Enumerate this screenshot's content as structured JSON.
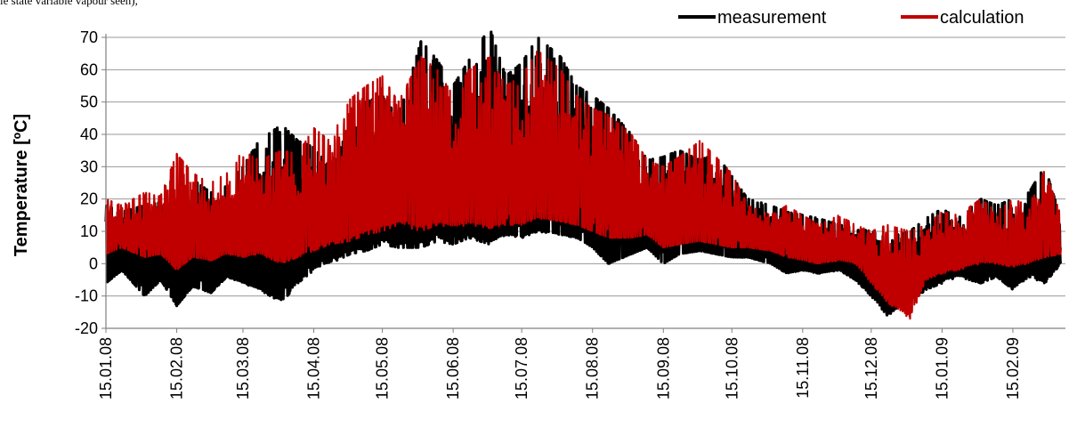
{
  "top_text": "le state variable vapour seen),",
  "chart_data": {
    "type": "line",
    "ylabel": "Temperature [ºC]",
    "xlabel": "",
    "ylim": [
      -20,
      70
    ],
    "yticks": [
      -20,
      -10,
      0,
      10,
      20,
      30,
      40,
      50,
      60,
      70
    ],
    "grid": "horizontal",
    "legend_position": "top-right",
    "x_domain": [
      "2008-01-15",
      "2009-03-10"
    ],
    "x_ticks": [
      {
        "date": "2008-01-15",
        "label": "15.01.08"
      },
      {
        "date": "2008-02-15",
        "label": "15.02.08"
      },
      {
        "date": "2008-03-15",
        "label": "15.03.08"
      },
      {
        "date": "2008-04-15",
        "label": "15.04.08"
      },
      {
        "date": "2008-05-15",
        "label": "15.05.08"
      },
      {
        "date": "2008-06-15",
        "label": "15.06.08"
      },
      {
        "date": "2008-07-15",
        "label": "15.07.08"
      },
      {
        "date": "2008-08-15",
        "label": "15.08.08"
      },
      {
        "date": "2008-09-15",
        "label": "15.09.08"
      },
      {
        "date": "2008-10-15",
        "label": "15.10.08"
      },
      {
        "date": "2008-11-15",
        "label": "15.11.08"
      },
      {
        "date": "2008-12-15",
        "label": "15.12.08"
      },
      {
        "date": "2009-01-15",
        "label": "15.01.09"
      },
      {
        "date": "2009-02-15",
        "label": "15.02.09"
      }
    ],
    "series": [
      {
        "name": "measurement",
        "color": "#000000",
        "envelope": [
          {
            "x": "2008-01-15",
            "min": -6,
            "max": 18
          },
          {
            "x": "2008-01-22",
            "min": -2,
            "max": 16
          },
          {
            "x": "2008-02-01",
            "min": -10,
            "max": 18
          },
          {
            "x": "2008-02-08",
            "min": -5,
            "max": 19
          },
          {
            "x": "2008-02-15",
            "min": -13,
            "max": 17
          },
          {
            "x": "2008-02-22",
            "min": -7,
            "max": 26
          },
          {
            "x": "2008-03-01",
            "min": -9,
            "max": 22
          },
          {
            "x": "2008-03-08",
            "min": -4,
            "max": 24
          },
          {
            "x": "2008-03-15",
            "min": -6,
            "max": 30
          },
          {
            "x": "2008-03-22",
            "min": -8,
            "max": 38
          },
          {
            "x": "2008-04-01",
            "min": -12,
            "max": 43
          },
          {
            "x": "2008-04-08",
            "min": -6,
            "max": 38
          },
          {
            "x": "2008-04-15",
            "min": -2,
            "max": 36
          },
          {
            "x": "2008-04-22",
            "min": 0,
            "max": 30
          },
          {
            "x": "2008-05-01",
            "min": 3,
            "max": 42
          },
          {
            "x": "2008-05-08",
            "min": 4,
            "max": 50
          },
          {
            "x": "2008-05-15",
            "min": 6,
            "max": 52
          },
          {
            "x": "2008-05-22",
            "min": 5,
            "max": 45
          },
          {
            "x": "2008-06-01",
            "min": 5,
            "max": 69
          },
          {
            "x": "2008-06-08",
            "min": 7,
            "max": 63
          },
          {
            "x": "2008-06-15",
            "min": 6,
            "max": 55
          },
          {
            "x": "2008-06-22",
            "min": 8,
            "max": 63
          },
          {
            "x": "2008-07-01",
            "min": 6,
            "max": 73
          },
          {
            "x": "2008-07-08",
            "min": 9,
            "max": 58
          },
          {
            "x": "2008-07-15",
            "min": 8,
            "max": 62
          },
          {
            "x": "2008-07-22",
            "min": 10,
            "max": 70
          },
          {
            "x": "2008-08-01",
            "min": 9,
            "max": 64
          },
          {
            "x": "2008-08-08",
            "min": 8,
            "max": 55
          },
          {
            "x": "2008-08-15",
            "min": 5,
            "max": 52
          },
          {
            "x": "2008-08-22",
            "min": 0,
            "max": 48
          },
          {
            "x": "2008-09-01",
            "min": 3,
            "max": 40
          },
          {
            "x": "2008-09-08",
            "min": 5,
            "max": 32
          },
          {
            "x": "2008-09-15",
            "min": 0,
            "max": 33
          },
          {
            "x": "2008-09-22",
            "min": 3,
            "max": 35
          },
          {
            "x": "2008-10-01",
            "min": 4,
            "max": 32
          },
          {
            "x": "2008-10-08",
            "min": 3,
            "max": 34
          },
          {
            "x": "2008-10-15",
            "min": 2,
            "max": 27
          },
          {
            "x": "2008-10-22",
            "min": 2,
            "max": 20
          },
          {
            "x": "2008-11-01",
            "min": 0,
            "max": 18
          },
          {
            "x": "2008-11-08",
            "min": -3,
            "max": 16
          },
          {
            "x": "2008-11-15",
            "min": -2,
            "max": 15
          },
          {
            "x": "2008-11-22",
            "min": -3,
            "max": 14
          },
          {
            "x": "2008-12-01",
            "min": -2,
            "max": 12
          },
          {
            "x": "2008-12-08",
            "min": -5,
            "max": 11
          },
          {
            "x": "2008-12-15",
            "min": -10,
            "max": 10
          },
          {
            "x": "2008-12-22",
            "min": -16,
            "max": 8
          },
          {
            "x": "2009-01-01",
            "min": -12,
            "max": 10
          },
          {
            "x": "2009-01-08",
            "min": -8,
            "max": 14
          },
          {
            "x": "2009-01-15",
            "min": -6,
            "max": 17
          },
          {
            "x": "2009-01-22",
            "min": -4,
            "max": 14
          },
          {
            "x": "2009-02-01",
            "min": -6,
            "max": 20
          },
          {
            "x": "2009-02-08",
            "min": -4,
            "max": 18
          },
          {
            "x": "2009-02-15",
            "min": -8,
            "max": 20
          },
          {
            "x": "2009-02-22",
            "min": -4,
            "max": 22
          },
          {
            "x": "2009-03-01",
            "min": -6,
            "max": 30
          },
          {
            "x": "2009-03-08",
            "min": 0,
            "max": 14
          }
        ]
      },
      {
        "name": "calculation",
        "color": "#c00000",
        "envelope": [
          {
            "x": "2008-01-15",
            "min": 3,
            "max": 20
          },
          {
            "x": "2008-01-22",
            "min": 5,
            "max": 18
          },
          {
            "x": "2008-02-01",
            "min": 2,
            "max": 22
          },
          {
            "x": "2008-02-08",
            "min": 3,
            "max": 21
          },
          {
            "x": "2008-02-15",
            "min": -2,
            "max": 34
          },
          {
            "x": "2008-02-22",
            "min": 2,
            "max": 28
          },
          {
            "x": "2008-03-01",
            "min": 1,
            "max": 25
          },
          {
            "x": "2008-03-08",
            "min": 3,
            "max": 28
          },
          {
            "x": "2008-03-15",
            "min": 2,
            "max": 35
          },
          {
            "x": "2008-03-22",
            "min": 3,
            "max": 32
          },
          {
            "x": "2008-04-01",
            "min": 0,
            "max": 35
          },
          {
            "x": "2008-04-08",
            "min": 2,
            "max": 34
          },
          {
            "x": "2008-04-15",
            "min": 4,
            "max": 42
          },
          {
            "x": "2008-04-22",
            "min": 6,
            "max": 38
          },
          {
            "x": "2008-05-01",
            "min": 7,
            "max": 51
          },
          {
            "x": "2008-05-08",
            "min": 9,
            "max": 55
          },
          {
            "x": "2008-05-15",
            "min": 10,
            "max": 58
          },
          {
            "x": "2008-05-22",
            "min": 12,
            "max": 50
          },
          {
            "x": "2008-06-01",
            "min": 10,
            "max": 64
          },
          {
            "x": "2008-06-08",
            "min": 12,
            "max": 60
          },
          {
            "x": "2008-06-15",
            "min": 11,
            "max": 52
          },
          {
            "x": "2008-06-22",
            "min": 12,
            "max": 60
          },
          {
            "x": "2008-07-01",
            "min": 11,
            "max": 64
          },
          {
            "x": "2008-07-08",
            "min": 12,
            "max": 55
          },
          {
            "x": "2008-07-15",
            "min": 12,
            "max": 58
          },
          {
            "x": "2008-07-22",
            "min": 14,
            "max": 66
          },
          {
            "x": "2008-08-01",
            "min": 13,
            "max": 60
          },
          {
            "x": "2008-08-08",
            "min": 12,
            "max": 52
          },
          {
            "x": "2008-08-15",
            "min": 10,
            "max": 48
          },
          {
            "x": "2008-08-22",
            "min": 8,
            "max": 46
          },
          {
            "x": "2008-09-01",
            "min": 8,
            "max": 40
          },
          {
            "x": "2008-09-08",
            "min": 9,
            "max": 32
          },
          {
            "x": "2008-09-15",
            "min": 5,
            "max": 30
          },
          {
            "x": "2008-09-22",
            "min": 6,
            "max": 33
          },
          {
            "x": "2008-10-01",
            "min": 7,
            "max": 38
          },
          {
            "x": "2008-10-08",
            "min": 6,
            "max": 33
          },
          {
            "x": "2008-10-15",
            "min": 5,
            "max": 28
          },
          {
            "x": "2008-10-22",
            "min": 5,
            "max": 18
          },
          {
            "x": "2008-11-01",
            "min": 4,
            "max": 15
          },
          {
            "x": "2008-11-08",
            "min": 2,
            "max": 18
          },
          {
            "x": "2008-11-15",
            "min": 1,
            "max": 15
          },
          {
            "x": "2008-11-22",
            "min": 0,
            "max": 12
          },
          {
            "x": "2008-12-01",
            "min": 1,
            "max": 15
          },
          {
            "x": "2008-12-08",
            "min": 0,
            "max": 12
          },
          {
            "x": "2008-12-15",
            "min": -6,
            "max": 10
          },
          {
            "x": "2008-12-22",
            "min": -12,
            "max": 12
          },
          {
            "x": "2009-01-01",
            "min": -17,
            "max": 10
          },
          {
            "x": "2009-01-08",
            "min": -5,
            "max": 12
          },
          {
            "x": "2009-01-15",
            "min": -3,
            "max": 16
          },
          {
            "x": "2009-01-22",
            "min": -2,
            "max": 15
          },
          {
            "x": "2009-02-01",
            "min": 0,
            "max": 20
          },
          {
            "x": "2009-02-08",
            "min": 0,
            "max": 16
          },
          {
            "x": "2009-02-15",
            "min": -1,
            "max": 20
          },
          {
            "x": "2009-02-22",
            "min": 0,
            "max": 18
          },
          {
            "x": "2009-03-01",
            "min": 2,
            "max": 29
          },
          {
            "x": "2009-03-08",
            "min": 3,
            "max": 15
          }
        ]
      }
    ]
  }
}
